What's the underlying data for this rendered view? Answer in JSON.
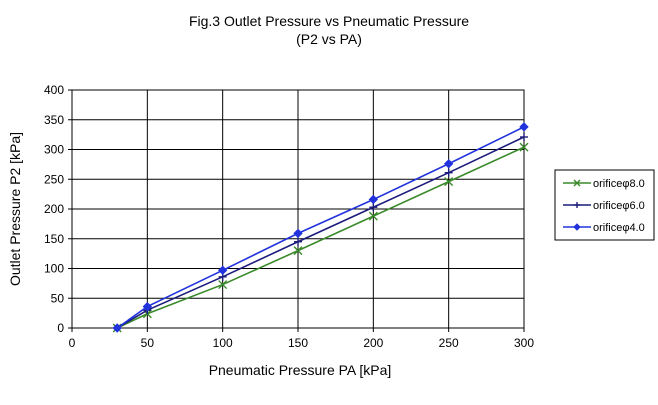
{
  "chart_data": {
    "type": "line",
    "title": "Fig.3 Outlet Pressure vs Pneumatic Pressure",
    "subtitle": "(P2 vs PA)",
    "xlabel": "Pneumatic Pressure PA [kPa]",
    "ylabel": "Outlet Pressure P2 [kPa]",
    "xlim": [
      0,
      300
    ],
    "ylim": [
      0,
      400
    ],
    "x_ticks": [
      0,
      50,
      100,
      150,
      200,
      250,
      300
    ],
    "y_ticks": [
      0,
      50,
      100,
      150,
      200,
      250,
      300,
      350,
      400
    ],
    "x_tick_labels": [
      "0",
      "50",
      "100",
      "150",
      "200",
      "250",
      "300"
    ],
    "y_tick_labels": [
      "0",
      "50",
      "100",
      "150",
      "200",
      "250",
      "300",
      "350",
      "400"
    ],
    "grid": true,
    "legend_position": "right",
    "x": [
      30,
      50,
      100,
      150,
      200,
      250,
      300
    ],
    "series": [
      {
        "name": "orificeφ8.0",
        "color": "#3a8a2a",
        "marker": "x",
        "values": [
          0,
          24,
          73,
          130,
          188,
          246,
          304
        ]
      },
      {
        "name": "orificeφ6.0",
        "color": "#1c1c7c",
        "marker": "plus",
        "values": [
          0,
          30,
          86,
          145,
          203,
          261,
          321
        ]
      },
      {
        "name": "orificeφ4.0",
        "color": "#2233dd",
        "marker": "diamond",
        "values": [
          0,
          36,
          97,
          159,
          216,
          276,
          338
        ]
      }
    ]
  }
}
